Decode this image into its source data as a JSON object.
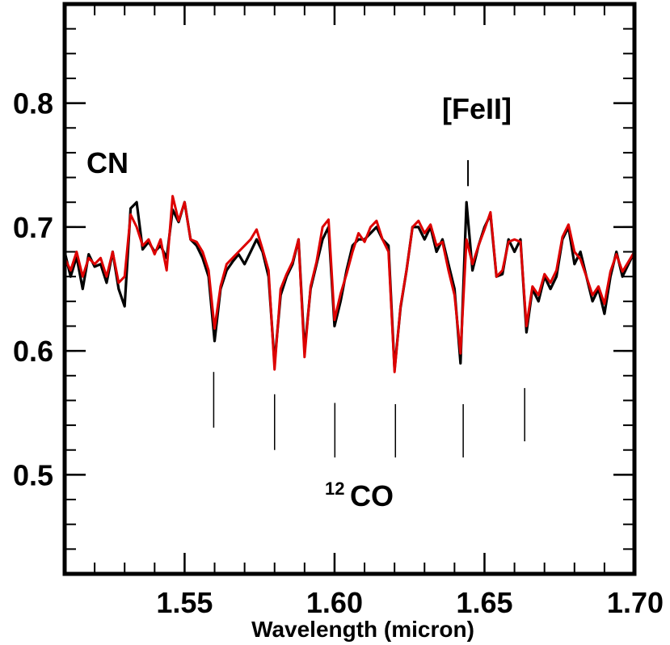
{
  "chart_data": {
    "type": "line",
    "title": "",
    "xlabel": "Wavelength (micron)",
    "ylabel": "",
    "xlim": [
      1.51,
      1.7
    ],
    "ylim": [
      0.42,
      0.88
    ],
    "grid": false,
    "x_ticks": [
      1.55,
      1.6,
      1.65,
      1.7
    ],
    "x_tick_labels": [
      "1.55",
      "1.60",
      "1.65",
      "1.70"
    ],
    "y_ticks": [
      0.5,
      0.6,
      0.7,
      0.8
    ],
    "y_tick_labels": [
      "0.5",
      "0.6",
      "0.7",
      "0.8"
    ],
    "x_minor_step": 0.01,
    "y_minor_step": 0.02,
    "colors": {
      "observed": "#000000",
      "model": "#dd0000"
    },
    "annotations": {
      "cn": "CN",
      "feii": "[FeII]",
      "co_super": "12",
      "co_main": "CO"
    },
    "feii_marker": {
      "x": 1.6445,
      "y_top": 0.754,
      "y_bottom": 0.733
    },
    "co_markers": [
      {
        "x": 1.5597,
        "y_top": 0.583,
        "y_bottom": 0.538
      },
      {
        "x": 1.58,
        "y_top": 0.565,
        "y_bottom": 0.52
      },
      {
        "x": 1.6001,
        "y_top": 0.558,
        "y_bottom": 0.514
      },
      {
        "x": 1.6203,
        "y_top": 0.557,
        "y_bottom": 0.514
      },
      {
        "x": 1.6429,
        "y_top": 0.557,
        "y_bottom": 0.514
      },
      {
        "x": 1.6634,
        "y_top": 0.57,
        "y_bottom": 0.527
      }
    ],
    "series": [
      {
        "key": "observed",
        "x": [
          1.51,
          1.512,
          1.514,
          1.516,
          1.518,
          1.52,
          1.522,
          1.524,
          1.526,
          1.528,
          1.53,
          1.532,
          1.534,
          1.536,
          1.538,
          1.54,
          1.542,
          1.544,
          1.546,
          1.548,
          1.55,
          1.552,
          1.554,
          1.556,
          1.558,
          1.56,
          1.562,
          1.564,
          1.566,
          1.568,
          1.57,
          1.572,
          1.574,
          1.576,
          1.578,
          1.58,
          1.582,
          1.584,
          1.586,
          1.588,
          1.59,
          1.592,
          1.594,
          1.596,
          1.598,
          1.6,
          1.602,
          1.604,
          1.606,
          1.608,
          1.61,
          1.612,
          1.614,
          1.616,
          1.618,
          1.62,
          1.622,
          1.624,
          1.626,
          1.628,
          1.63,
          1.632,
          1.634,
          1.636,
          1.638,
          1.64,
          1.642,
          1.644,
          1.646,
          1.648,
          1.65,
          1.652,
          1.654,
          1.656,
          1.658,
          1.66,
          1.662,
          1.664,
          1.666,
          1.668,
          1.67,
          1.672,
          1.674,
          1.676,
          1.678,
          1.68,
          1.682,
          1.684,
          1.686,
          1.688,
          1.69,
          1.692,
          1.694,
          1.696,
          1.698,
          1.7
        ],
        "y": [
          0.68,
          0.66,
          0.676,
          0.65,
          0.678,
          0.668,
          0.67,
          0.655,
          0.68,
          0.65,
          0.636,
          0.715,
          0.72,
          0.682,
          0.688,
          0.68,
          0.685,
          0.675,
          0.714,
          0.704,
          0.72,
          0.69,
          0.685,
          0.675,
          0.66,
          0.608,
          0.65,
          0.665,
          0.672,
          0.678,
          0.67,
          0.68,
          0.69,
          0.68,
          0.66,
          0.59,
          0.645,
          0.66,
          0.67,
          0.69,
          0.6,
          0.65,
          0.67,
          0.69,
          0.7,
          0.62,
          0.64,
          0.665,
          0.685,
          0.69,
          0.69,
          0.695,
          0.7,
          0.69,
          0.685,
          0.585,
          0.635,
          0.665,
          0.7,
          0.7,
          0.69,
          0.7,
          0.68,
          0.69,
          0.67,
          0.65,
          0.59,
          0.72,
          0.665,
          0.685,
          0.7,
          0.71,
          0.66,
          0.662,
          0.69,
          0.68,
          0.69,
          0.615,
          0.65,
          0.64,
          0.66,
          0.65,
          0.66,
          0.69,
          0.7,
          0.67,
          0.68,
          0.66,
          0.64,
          0.65,
          0.63,
          0.66,
          0.68,
          0.66,
          0.67,
          0.68
        ]
      },
      {
        "key": "model",
        "x": [
          1.51,
          1.512,
          1.514,
          1.516,
          1.518,
          1.52,
          1.522,
          1.524,
          1.526,
          1.528,
          1.53,
          1.532,
          1.534,
          1.536,
          1.538,
          1.54,
          1.542,
          1.544,
          1.546,
          1.548,
          1.55,
          1.552,
          1.554,
          1.556,
          1.558,
          1.56,
          1.562,
          1.564,
          1.566,
          1.568,
          1.57,
          1.572,
          1.574,
          1.576,
          1.578,
          1.58,
          1.582,
          1.584,
          1.586,
          1.588,
          1.59,
          1.592,
          1.594,
          1.596,
          1.598,
          1.6,
          1.602,
          1.604,
          1.606,
          1.608,
          1.61,
          1.612,
          1.614,
          1.616,
          1.618,
          1.62,
          1.622,
          1.624,
          1.626,
          1.628,
          1.63,
          1.632,
          1.634,
          1.636,
          1.638,
          1.64,
          1.642,
          1.644,
          1.646,
          1.648,
          1.65,
          1.652,
          1.654,
          1.656,
          1.658,
          1.66,
          1.662,
          1.664,
          1.666,
          1.668,
          1.67,
          1.672,
          1.674,
          1.676,
          1.678,
          1.68,
          1.682,
          1.684,
          1.686,
          1.688,
          1.69,
          1.692,
          1.694,
          1.696,
          1.698,
          1.7
        ],
        "y": [
          0.675,
          0.665,
          0.68,
          0.66,
          0.675,
          0.67,
          0.675,
          0.66,
          0.68,
          0.655,
          0.66,
          0.71,
          0.7,
          0.685,
          0.69,
          0.678,
          0.69,
          0.665,
          0.725,
          0.705,
          0.72,
          0.69,
          0.688,
          0.68,
          0.665,
          0.618,
          0.652,
          0.67,
          0.675,
          0.68,
          0.685,
          0.69,
          0.698,
          0.682,
          0.665,
          0.585,
          0.65,
          0.662,
          0.672,
          0.69,
          0.595,
          0.652,
          0.672,
          0.7,
          0.706,
          0.625,
          0.646,
          0.662,
          0.68,
          0.695,
          0.688,
          0.7,
          0.705,
          0.69,
          0.68,
          0.583,
          0.636,
          0.665,
          0.7,
          0.705,
          0.695,
          0.702,
          0.685,
          0.688,
          0.665,
          0.645,
          0.598,
          0.69,
          0.67,
          0.685,
          0.698,
          0.712,
          0.66,
          0.665,
          0.688,
          0.69,
          0.688,
          0.62,
          0.652,
          0.645,
          0.662,
          0.655,
          0.665,
          0.692,
          0.702,
          0.68,
          0.674,
          0.66,
          0.645,
          0.652,
          0.638,
          0.664,
          0.678,
          0.664,
          0.672,
          0.68
        ]
      }
    ]
  }
}
